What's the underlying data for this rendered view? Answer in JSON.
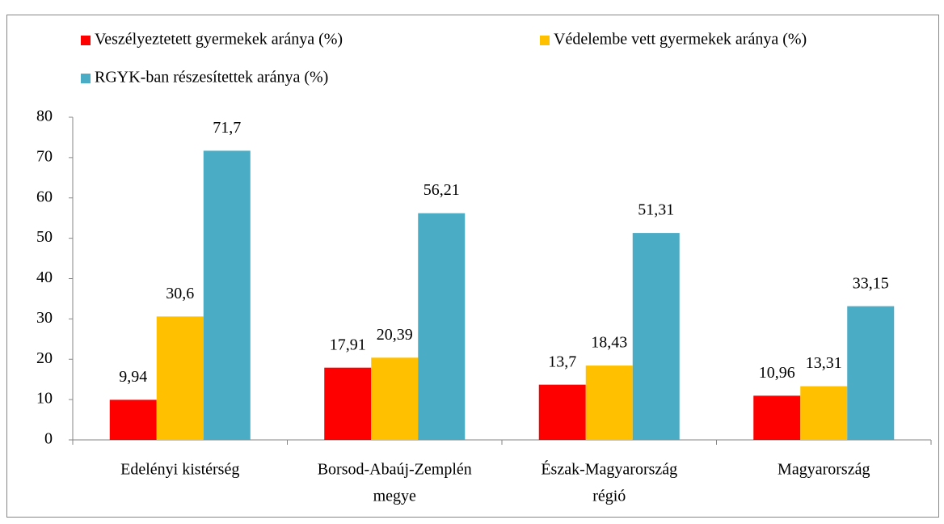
{
  "chart_data": {
    "type": "bar",
    "categories": [
      [
        "Edelényi kistérség"
      ],
      [
        "Borsod-Abaúj-Zemplén",
        "megye"
      ],
      [
        "Észak-Magyarország",
        "régió"
      ],
      [
        "Magyarország"
      ]
    ],
    "series": [
      {
        "name": "Veszélyeztetett gyermekek aránya (%)",
        "color": "#ff0000",
        "values": [
          9.94,
          17.91,
          13.7,
          10.96
        ],
        "value_labels": [
          "9,94",
          "17,91",
          "13,7",
          "10,96"
        ]
      },
      {
        "name": "Védelembe vett gyermekek aránya (%)",
        "color": "#ffc000",
        "values": [
          30.6,
          20.39,
          18.43,
          13.31
        ],
        "value_labels": [
          "30,6",
          "20,39",
          "18,43",
          "13,31"
        ]
      },
      {
        "name": "RGYK-ban részesítettek aránya (%)",
        "color": "#4bacc6",
        "values": [
          71.7,
          56.21,
          51.31,
          33.15
        ],
        "value_labels": [
          "71,7",
          "56,21",
          "51,31",
          "33,15"
        ]
      }
    ],
    "ylim": [
      0,
      80
    ],
    "yticks": [
      0,
      10,
      20,
      30,
      40,
      50,
      60,
      70,
      80
    ],
    "grid": false,
    "legend": "top"
  }
}
